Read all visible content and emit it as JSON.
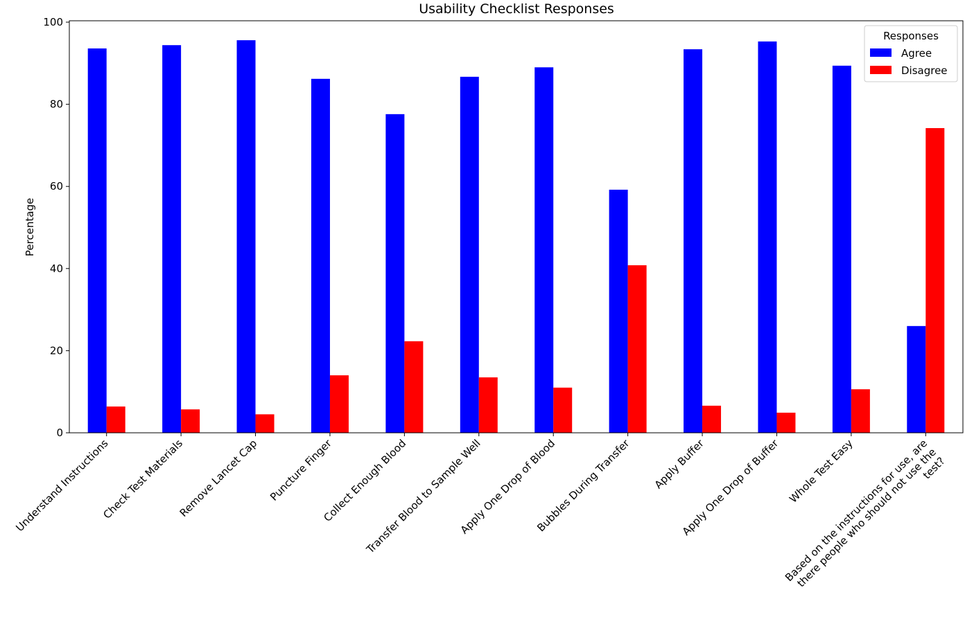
{
  "chart_data": {
    "type": "bar",
    "title": "Usability Checklist Responses",
    "xlabel": "",
    "ylabel": "Percentage",
    "ylim": [
      0,
      100
    ],
    "yticks": [
      "0",
      "20",
      "40",
      "60",
      "80",
      "100"
    ],
    "grid": false,
    "legend": {
      "title": "Responses",
      "placement": "top-right"
    },
    "categories": [
      "Understand Instructions",
      "Check Test Materials",
      "Remove Lancet Cap",
      "Puncture Finger",
      "Collect Enough Blood",
      "Transfer Blood to Sample Well",
      "Apply One Drop of Blood",
      "Bubbles During Transfer",
      "Apply Buffer",
      "Apply One Drop of Buffer",
      "Whole Test Easy",
      "Based on the instructions for use, are\nthere people who should not use the\ntest?"
    ],
    "series": [
      {
        "name": "Agree",
        "color": "#0000ff",
        "values": [
          93.6,
          94.4,
          95.6,
          86.2,
          77.6,
          86.7,
          89.0,
          59.2,
          93.4,
          95.3,
          89.4,
          26.0
        ]
      },
      {
        "name": "Disagree",
        "color": "#ff0000",
        "values": [
          6.4,
          5.7,
          4.5,
          14.0,
          22.3,
          13.5,
          11.0,
          40.8,
          6.6,
          4.9,
          10.6,
          74.2
        ]
      }
    ]
  }
}
